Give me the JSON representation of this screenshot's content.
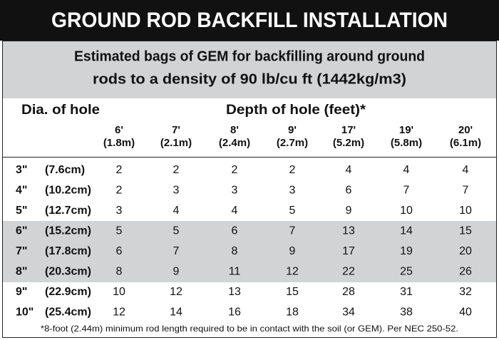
{
  "header": {
    "title": "GROUND ROD BACKFILL INSTALLATION",
    "subtitle_lines": [
      "Estimated bags of GEM for backfilling around ground",
      "rods to a density of 90 lb/cu ft (1442kg/m3)"
    ]
  },
  "table": {
    "row_header": "Dia. of hole",
    "column_group_header": "Depth of hole (feet)*",
    "columns": [
      {
        "feet": "6'",
        "metric": "(1.8m)"
      },
      {
        "feet": "7'",
        "metric": "(2.1m)"
      },
      {
        "feet": "8'",
        "metric": "(2.4m)"
      },
      {
        "feet": "9'",
        "metric": "(2.7m)"
      },
      {
        "feet": "17'",
        "metric": "(5.2m)"
      },
      {
        "feet": "19'",
        "metric": "(5.8m)"
      },
      {
        "feet": "20'",
        "metric": "(6.1m)"
      }
    ],
    "rows": [
      {
        "size": "3\"",
        "metric": "(7.6cm)",
        "values": [
          2,
          2,
          2,
          2,
          4,
          4,
          4
        ]
      },
      {
        "size": "4\"",
        "metric": "(10.2cm)",
        "values": [
          2,
          3,
          3,
          3,
          6,
          7,
          7
        ]
      },
      {
        "size": "5\"",
        "metric": "(12.7cm)",
        "values": [
          3,
          4,
          4,
          5,
          9,
          10,
          10
        ]
      },
      {
        "size": "6\"",
        "metric": "(15.2cm)",
        "values": [
          5,
          5,
          6,
          7,
          13,
          14,
          15
        ]
      },
      {
        "size": "7\"",
        "metric": "(17.8cm)",
        "values": [
          6,
          7,
          8,
          9,
          17,
          19,
          20
        ]
      },
      {
        "size": "8\"",
        "metric": "(20.3cm)",
        "values": [
          8,
          9,
          11,
          12,
          22,
          25,
          26
        ]
      },
      {
        "size": "9\"",
        "metric": "(22.9cm)",
        "values": [
          10,
          12,
          13,
          15,
          28,
          31,
          32
        ]
      },
      {
        "size": "10\"",
        "metric": "(25.4cm)",
        "values": [
          12,
          14,
          16,
          18,
          34,
          38,
          40
        ]
      }
    ]
  },
  "footnote": "*8-foot (2.44m) minimum rod length required to be in contact with the soil (or GEM). Per NEC 250-52."
}
